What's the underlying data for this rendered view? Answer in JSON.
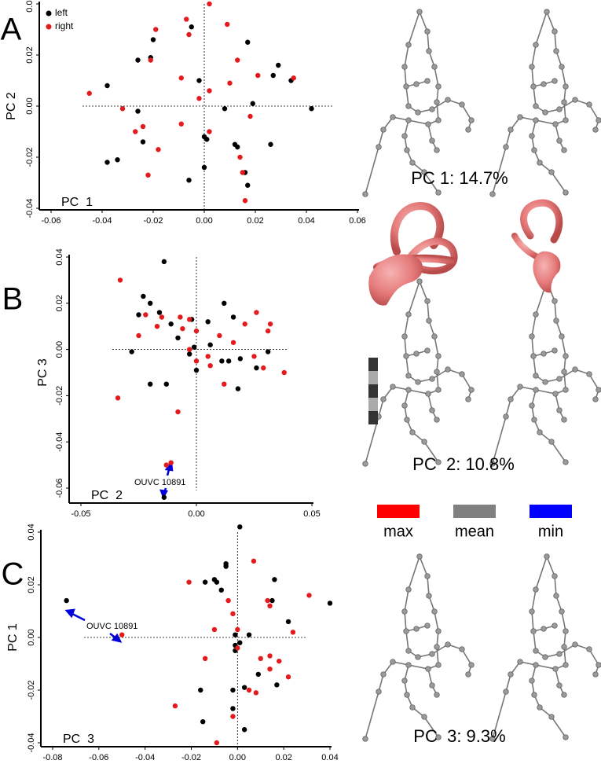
{
  "chart_data": [
    {
      "type": "scatter",
      "panel": "A",
      "caption": "PC 1: 14.7%",
      "x_label": "PC  1",
      "y_label": "PC 2",
      "xlim": [
        -0.06,
        0.06
      ],
      "ylim": [
        -0.04,
        0.04
      ],
      "xticks": [
        -0.06,
        -0.04,
        -0.02,
        {
          "value": 0,
          "label": "0.00"
        },
        0.02,
        0.04,
        0.06
      ],
      "yticks": [
        -0.04,
        -0.02,
        {
          "value": 0,
          "label": "0.00"
        },
        0.02,
        0.04
      ],
      "legend": "upper left",
      "series": [
        {
          "name": "left",
          "color": "#000000",
          "x": [
            -0.038,
            -0.038,
            -0.034,
            -0.026,
            -0.026,
            -0.024,
            -0.02,
            -0.021,
            -0.005,
            -0.002,
            -0.006,
            0.0,
            0.0,
            0.001,
            0.008,
            0.017,
            0.012,
            0.013,
            0.019,
            0.016,
            0.017,
            0.026,
            0.029,
            0.027,
            0.034,
            0.042
          ],
          "values": [
            0.008,
            -0.022,
            -0.021,
            0.018,
            -0.002,
            -0.014,
            0.026,
            0.019,
            0.031,
            0.01,
            -0.029,
            -0.024,
            -0.012,
            -0.013,
            -0.001,
            0.025,
            -0.015,
            -0.016,
            0.001,
            -0.026,
            -0.031,
            -0.015,
            0.016,
            0.012,
            0.01,
            -0.001
          ]
        },
        {
          "name": "right",
          "color": "#e41a1c",
          "x": [
            -0.045,
            -0.032,
            -0.027,
            -0.024,
            -0.021,
            -0.019,
            -0.018,
            -0.022,
            -0.009,
            -0.009,
            -0.007,
            -0.006,
            -0.002,
            0.002,
            0.002,
            0.002,
            0.009,
            0.01,
            0.013,
            0.018,
            0.014,
            0.015,
            0.016,
            0.021,
            0.035
          ],
          "values": [
            0.005,
            -0.001,
            -0.01,
            -0.008,
            0.018,
            0.03,
            -0.017,
            -0.027,
            -0.007,
            0.011,
            0.034,
            0.028,
            0.003,
            0.04,
            0.006,
            -0.01,
            0.032,
            0.009,
            0.018,
            -0.004,
            -0.02,
            -0.026,
            -0.037,
            0.012,
            0.011
          ]
        }
      ]
    },
    {
      "type": "scatter",
      "panel": "B",
      "caption": "PC  2: 10.8%",
      "x_label": "PC  2",
      "y_label": "PC  3",
      "annotation": "OUVC 10891",
      "xlim": [
        -0.05,
        0.05
      ],
      "ylim": [
        -0.06,
        0.04
      ],
      "xticks": [
        -0.05,
        {
          "value": 0,
          "label": "0.00"
        },
        0.05
      ],
      "yticks": [
        -0.06,
        -0.04,
        -0.02,
        {
          "value": 0,
          "label": "0.00"
        },
        0.02,
        0.04
      ],
      "series": [
        {
          "color": "#000000",
          "x": [
            -0.014,
            -0.023,
            -0.02,
            -0.016,
            -0.025,
            -0.011,
            -0.002,
            0.005,
            0.012,
            0.016,
            -0.008,
            -0.001,
            0.006,
            -0.003,
            0.0,
            -0.028,
            -0.02,
            -0.013,
            0.011,
            0.014,
            0.019,
            0.026,
            0.031,
            0.018,
            -0.014
          ],
          "values": [
            0.038,
            0.023,
            0.02,
            0.016,
            0.015,
            0.011,
            0.013,
            0.012,
            0.02,
            0.014,
            0.005,
            0.001,
            0.002,
            -0.002,
            -0.009,
            -0.001,
            -0.015,
            -0.015,
            -0.005,
            -0.005,
            -0.004,
            -0.008,
            -0.001,
            -0.017,
            -0.064
          ]
        },
        {
          "color": "#e41a1c",
          "x": [
            -0.033,
            -0.025,
            -0.022,
            -0.017,
            -0.015,
            -0.007,
            -0.003,
            -0.006,
            -0.003,
            0.0,
            0.0,
            0.005,
            0.01,
            0.016,
            0.021,
            0.026,
            0.031,
            0.032,
            0.025,
            0.029,
            0.038,
            0.012,
            0.006,
            -0.034,
            -0.008,
            -0.011,
            -0.013
          ],
          "values": [
            0.03,
            0.006,
            0.015,
            0.01,
            0.014,
            0.014,
            0.013,
            0.009,
            0.0,
            0.008,
            -0.005,
            -0.003,
            0.006,
            0.003,
            0.011,
            0.016,
            0.008,
            0.011,
            -0.003,
            -0.008,
            -0.01,
            -0.015,
            -0.007,
            -0.021,
            -0.027,
            -0.049,
            -0.05
          ]
        }
      ]
    },
    {
      "type": "scatter",
      "panel": "C",
      "caption": "PC  3: 9.3%",
      "x_label": "PC  3",
      "y_label": "PC  1",
      "annotation": "OUVC 10891",
      "xlim": [
        -0.08,
        0.04
      ],
      "ylim": [
        -0.04,
        0.04
      ],
      "xticks": [
        -0.08,
        -0.06,
        -0.04,
        -0.02,
        {
          "value": 0,
          "label": "0.00"
        },
        0.02,
        0.04
      ],
      "yticks": [
        -0.04,
        -0.02,
        {
          "value": 0,
          "label": "0.00"
        },
        0.02,
        0.04
      ],
      "series": [
        {
          "color": "#000000",
          "x": [
            -0.074,
            0.001,
            -0.005,
            -0.005,
            -0.014,
            -0.01,
            -0.009,
            -0.007,
            0.016,
            0.015,
            0.022,
            0.04,
            -0.001,
            0.001,
            -0.001,
            0.005,
            -0.001,
            0.009,
            -0.016,
            -0.002,
            0.003,
            -0.002,
            0.017,
            -0.015,
            0.003
          ],
          "values": [
            0.014,
            0.042,
            0.028,
            0.027,
            0.021,
            0.022,
            0.021,
            0.018,
            0.022,
            0.014,
            0.006,
            0.013,
            0.001,
            -0.002,
            -0.003,
            0.001,
            -0.005,
            -0.014,
            -0.02,
            -0.02,
            -0.019,
            -0.027,
            -0.018,
            -0.032,
            -0.035
          ]
        },
        {
          "color": "#e41a1c",
          "x": [
            -0.05,
            -0.021,
            -0.004,
            0.007,
            0.013,
            0.014,
            0.024,
            0.031,
            0.0,
            -0.01,
            -0.002,
            -0.014,
            0.0,
            0.01,
            0.014,
            0.014,
            0.018,
            0.022,
            0.005,
            0.008,
            -0.027,
            -0.002,
            -0.009
          ],
          "values": [
            0.001,
            0.021,
            0.014,
            0.029,
            0.014,
            0.012,
            0.002,
            0.016,
            0.003,
            0.003,
            0.009,
            -0.008,
            -0.004,
            -0.008,
            -0.007,
            -0.012,
            -0.009,
            -0.015,
            -0.02,
            -0.021,
            -0.026,
            -0.03,
            -0.04
          ]
        }
      ]
    }
  ],
  "shape_legend": [
    {
      "name": "max",
      "color": "#ff0000"
    },
    {
      "name": "mean",
      "color": "#808080"
    },
    {
      "name": "min",
      "color": "#0000ff"
    }
  ]
}
